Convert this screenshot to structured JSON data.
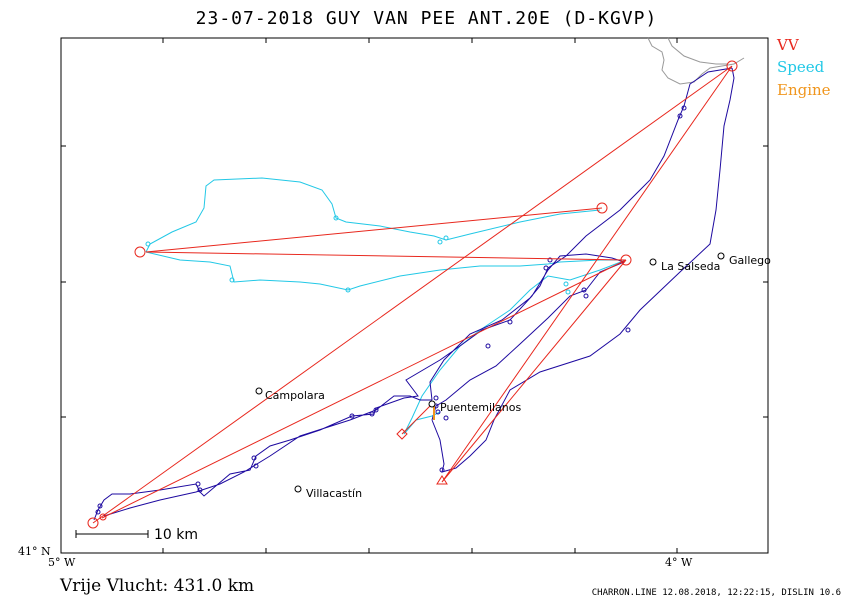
{
  "title": "23-07-2018   GUY VAN PEE   ANT.20E (D-KGVP)",
  "legend": [
    {
      "label": "VV",
      "color": "#e8281e"
    },
    {
      "label": "Speed",
      "color": "#22c8e6"
    },
    {
      "label": "Engine",
      "color": "#f0961e"
    }
  ],
  "axes": {
    "lat_label": "41° N",
    "lon_left_label": "5° W",
    "lon_right_label": "4° W"
  },
  "scale_bar": "10 km",
  "places": [
    "Campolara",
    "Puentemilanos",
    "Villacastín",
    "La Salseda",
    "Gallego"
  ],
  "free_flight": "Vrije Vlucht:  431.0 km",
  "footer": "CHARRON.LINE 12.08.2018, 12:22:15, DISLIN 10.6",
  "colors": {
    "vv": "#e8281e",
    "speed": "#22c8e6",
    "engine": "#f0961e",
    "track": "#1e0aa0",
    "border": "#9a9a9a"
  }
}
